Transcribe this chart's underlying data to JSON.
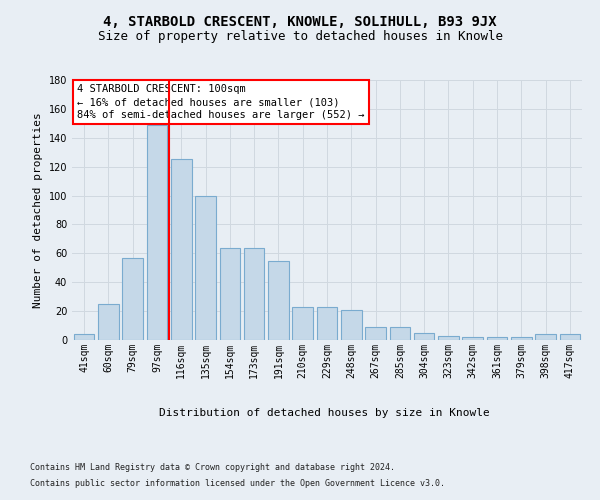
{
  "title_line1": "4, STARBOLD CRESCENT, KNOWLE, SOLIHULL, B93 9JX",
  "title_line2": "Size of property relative to detached houses in Knowle",
  "xlabel": "Distribution of detached houses by size in Knowle",
  "ylabel": "Number of detached properties",
  "footer_line1": "Contains HM Land Registry data © Crown copyright and database right 2024.",
  "footer_line2": "Contains public sector information licensed under the Open Government Licence v3.0.",
  "bar_labels": [
    "41sqm",
    "60sqm",
    "79sqm",
    "97sqm",
    "116sqm",
    "135sqm",
    "154sqm",
    "173sqm",
    "191sqm",
    "210sqm",
    "229sqm",
    "248sqm",
    "267sqm",
    "285sqm",
    "304sqm",
    "323sqm",
    "342sqm",
    "361sqm",
    "379sqm",
    "398sqm",
    "417sqm"
  ],
  "bar_values": [
    4,
    25,
    57,
    149,
    125,
    100,
    64,
    64,
    55,
    23,
    23,
    21,
    9,
    9,
    5,
    3,
    2,
    2,
    2,
    4,
    4
  ],
  "bar_color": "#c5d8e8",
  "bar_edge_color": "#7aabcf",
  "grid_color": "#d0d8e0",
  "vline_x": 3.5,
  "vline_color": "red",
  "annotation_text": "4 STARBOLD CRESCENT: 100sqm\n← 16% of detached houses are smaller (103)\n84% of semi-detached houses are larger (552) →",
  "annotation_box_color": "white",
  "annotation_box_edge_color": "red",
  "ylim": [
    0,
    180
  ],
  "yticks": [
    0,
    20,
    40,
    60,
    80,
    100,
    120,
    140,
    160,
    180
  ],
  "background_color": "#e8eef4",
  "plot_background_color": "#e8eef4",
  "title_fontsize": 10,
  "subtitle_fontsize": 9,
  "ylabel_fontsize": 8,
  "xlabel_fontsize": 8,
  "tick_fontsize": 7,
  "footer_fontsize": 6,
  "ann_fontsize": 7.5
}
